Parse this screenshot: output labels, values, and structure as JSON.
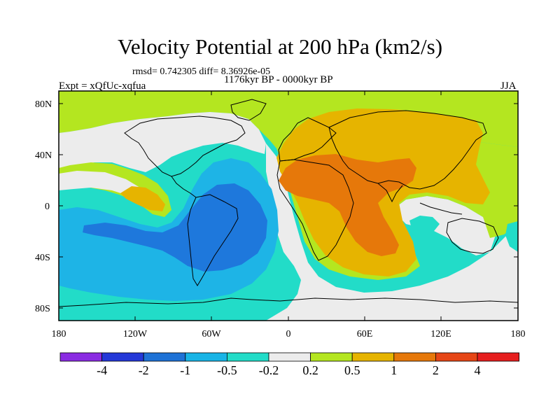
{
  "title": "Velocity Potential at 200 hPa (km2/s)",
  "stats": "rmsd= 0.742305 diff= 8.36926e-05",
  "period": "1176kyr BP - 0000kyr BP",
  "experiment": "Expt = xQfUc-xqfua",
  "season": "JJA",
  "y_ticks": [
    "80N",
    "40N",
    "0",
    "40S",
    "80S"
  ],
  "x_ticks": [
    "180",
    "120W",
    "60W",
    "0",
    "60E",
    "120E",
    "180"
  ],
  "colorbar": {
    "labels": [
      "-4",
      "-2",
      "-1",
      "-0.5",
      "-0.2",
      "0.2",
      "0.5",
      "1",
      "2",
      "4"
    ],
    "colors": [
      "#8a2be2",
      "#2438d8",
      "#1e72d6",
      "#18b4e6",
      "#22dcc8",
      "#ececec",
      "#b4e620",
      "#e6b400",
      "#e6780a",
      "#e64616",
      "#e61e1e"
    ]
  },
  "field_colors": {
    "strong_negative": "#1e78dc",
    "negative": "#1eb4e6",
    "weak_negative": "#22dcc8",
    "neutral": "#ececec",
    "weak_positive": "#b4e620",
    "positive": "#e6b400",
    "strong_positive": "#e6780a"
  }
}
